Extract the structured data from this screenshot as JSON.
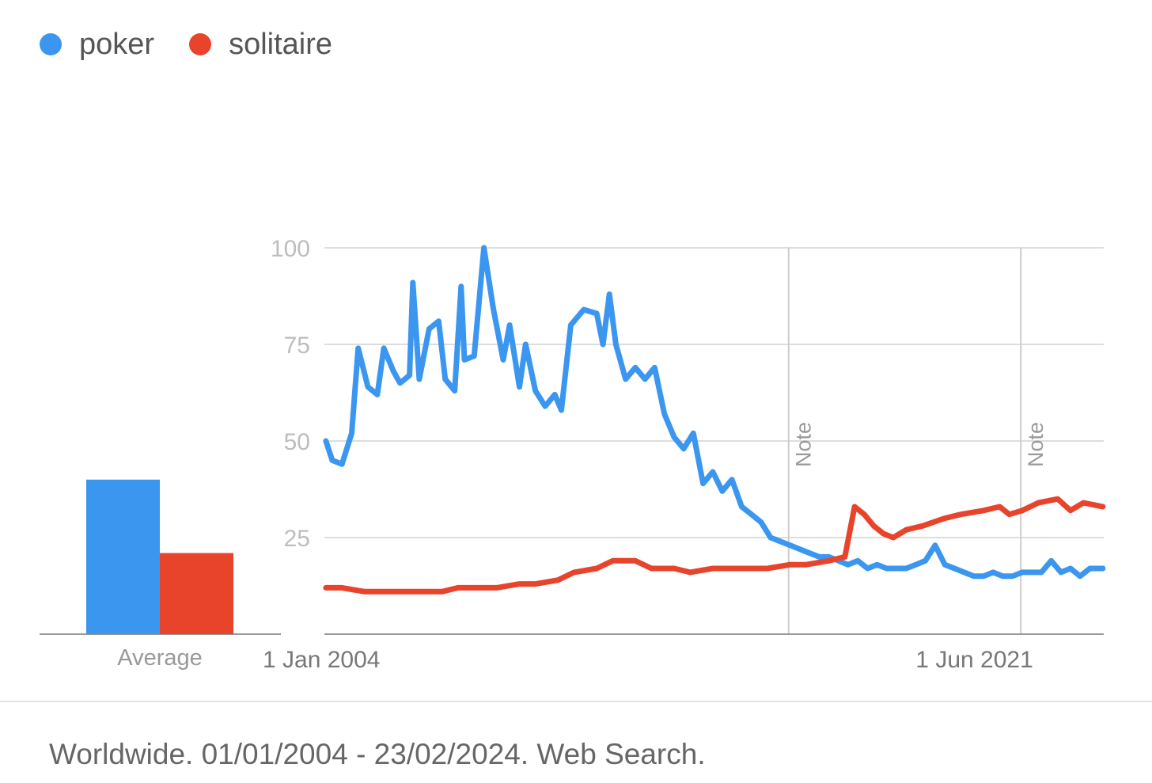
{
  "legend": [
    {
      "name": "poker",
      "color": "#3b96f0"
    },
    {
      "name": "solitaire",
      "color": "#e8442c"
    }
  ],
  "footer": {
    "text": "Worldwide. 01/01/2004 - 23/02/2024. Web Search."
  },
  "chart_data": {
    "type": "line",
    "title": "",
    "xlabel": "",
    "ylabel": "",
    "ylim": [
      0,
      100
    ],
    "yticks": [
      25,
      50,
      75,
      100
    ],
    "xlim": [
      "2004-01-01",
      "2024-02-23"
    ],
    "xtick_labels": [
      {
        "label": "1 Jan 2004",
        "date": "2004-01-01"
      },
      {
        "label": "1 Jun 2021",
        "date": "2021-06-01"
      }
    ],
    "notes": [
      {
        "label": "Note",
        "date": "2016-01-01"
      },
      {
        "label": "Note",
        "date": "2022-01-01"
      }
    ],
    "grid": true,
    "legend_position": "top-left",
    "average": {
      "label": "Average",
      "values": [
        {
          "name": "poker",
          "value": 40
        },
        {
          "name": "solitaire",
          "value": 21
        }
      ]
    },
    "series": [
      {
        "name": "poker",
        "color": "#3b96f0",
        "points": [
          [
            "2004-01",
            50
          ],
          [
            "2004-03",
            45
          ],
          [
            "2004-06",
            44
          ],
          [
            "2004-09",
            52
          ],
          [
            "2004-11",
            74
          ],
          [
            "2005-02",
            64
          ],
          [
            "2005-05",
            62
          ],
          [
            "2005-07",
            74
          ],
          [
            "2005-10",
            68
          ],
          [
            "2005-12",
            65
          ],
          [
            "2006-03",
            67
          ],
          [
            "2006-04",
            91
          ],
          [
            "2006-06",
            66
          ],
          [
            "2006-09",
            79
          ],
          [
            "2006-12",
            81
          ],
          [
            "2007-02",
            66
          ],
          [
            "2007-05",
            63
          ],
          [
            "2007-07",
            90
          ],
          [
            "2007-08",
            71
          ],
          [
            "2007-11",
            72
          ],
          [
            "2008-02",
            100
          ],
          [
            "2008-05",
            84
          ],
          [
            "2008-08",
            71
          ],
          [
            "2008-10",
            80
          ],
          [
            "2009-01",
            64
          ],
          [
            "2009-03",
            75
          ],
          [
            "2009-06",
            63
          ],
          [
            "2009-09",
            59
          ],
          [
            "2009-12",
            62
          ],
          [
            "2010-02",
            58
          ],
          [
            "2010-05",
            80
          ],
          [
            "2010-09",
            84
          ],
          [
            "2011-01",
            83
          ],
          [
            "2011-03",
            75
          ],
          [
            "2011-05",
            88
          ],
          [
            "2011-07",
            75
          ],
          [
            "2011-10",
            66
          ],
          [
            "2012-01",
            69
          ],
          [
            "2012-04",
            66
          ],
          [
            "2012-07",
            69
          ],
          [
            "2012-10",
            57
          ],
          [
            "2013-01",
            51
          ],
          [
            "2013-04",
            48
          ],
          [
            "2013-07",
            52
          ],
          [
            "2013-10",
            39
          ],
          [
            "2014-01",
            42
          ],
          [
            "2014-04",
            37
          ],
          [
            "2014-07",
            40
          ],
          [
            "2014-10",
            33
          ],
          [
            "2015-01",
            31
          ],
          [
            "2015-04",
            29
          ],
          [
            "2015-07",
            25
          ],
          [
            "2015-10",
            24
          ],
          [
            "2016-01",
            23
          ],
          [
            "2016-04",
            22
          ],
          [
            "2016-07",
            21
          ],
          [
            "2016-10",
            20
          ],
          [
            "2017-01",
            20
          ],
          [
            "2017-04",
            19
          ],
          [
            "2017-07",
            18
          ],
          [
            "2017-10",
            19
          ],
          [
            "2018-01",
            17
          ],
          [
            "2018-04",
            18
          ],
          [
            "2018-07",
            17
          ],
          [
            "2018-10",
            17
          ],
          [
            "2019-01",
            17
          ],
          [
            "2019-04",
            18
          ],
          [
            "2019-07",
            19
          ],
          [
            "2019-10",
            23
          ],
          [
            "2020-01",
            18
          ],
          [
            "2020-04",
            17
          ],
          [
            "2020-07",
            16
          ],
          [
            "2020-10",
            15
          ],
          [
            "2021-01",
            15
          ],
          [
            "2021-04",
            16
          ],
          [
            "2021-07",
            15
          ],
          [
            "2021-10",
            15
          ],
          [
            "2022-01",
            16
          ],
          [
            "2022-04",
            16
          ],
          [
            "2022-07",
            16
          ],
          [
            "2022-10",
            19
          ],
          [
            "2023-01",
            16
          ],
          [
            "2023-04",
            17
          ],
          [
            "2023-07",
            15
          ],
          [
            "2023-10",
            17
          ],
          [
            "2024-02",
            17
          ]
        ]
      },
      {
        "name": "solitaire",
        "color": "#e8442c",
        "points": [
          [
            "2004-01",
            12
          ],
          [
            "2004-06",
            12
          ],
          [
            "2005-01",
            11
          ],
          [
            "2005-06",
            11
          ],
          [
            "2006-01",
            11
          ],
          [
            "2006-06",
            11
          ],
          [
            "2007-01",
            11
          ],
          [
            "2007-06",
            12
          ],
          [
            "2008-01",
            12
          ],
          [
            "2008-06",
            12
          ],
          [
            "2009-01",
            13
          ],
          [
            "2009-06",
            13
          ],
          [
            "2010-01",
            14
          ],
          [
            "2010-06",
            16
          ],
          [
            "2011-01",
            17
          ],
          [
            "2011-06",
            19
          ],
          [
            "2012-01",
            19
          ],
          [
            "2012-06",
            17
          ],
          [
            "2013-01",
            17
          ],
          [
            "2013-06",
            16
          ],
          [
            "2014-01",
            17
          ],
          [
            "2014-06",
            17
          ],
          [
            "2015-01",
            17
          ],
          [
            "2015-06",
            17
          ],
          [
            "2016-01",
            18
          ],
          [
            "2016-06",
            18
          ],
          [
            "2017-01",
            19
          ],
          [
            "2017-06",
            20
          ],
          [
            "2017-09",
            33
          ],
          [
            "2017-12",
            31
          ],
          [
            "2018-03",
            28
          ],
          [
            "2018-06",
            26
          ],
          [
            "2018-09",
            25
          ],
          [
            "2019-01",
            27
          ],
          [
            "2019-06",
            28
          ],
          [
            "2020-01",
            30
          ],
          [
            "2020-06",
            31
          ],
          [
            "2021-01",
            32
          ],
          [
            "2021-06",
            33
          ],
          [
            "2021-09",
            31
          ],
          [
            "2022-01",
            32
          ],
          [
            "2022-06",
            34
          ],
          [
            "2022-12",
            35
          ],
          [
            "2023-04",
            32
          ],
          [
            "2023-08",
            34
          ],
          [
            "2024-02",
            33
          ]
        ]
      }
    ]
  }
}
